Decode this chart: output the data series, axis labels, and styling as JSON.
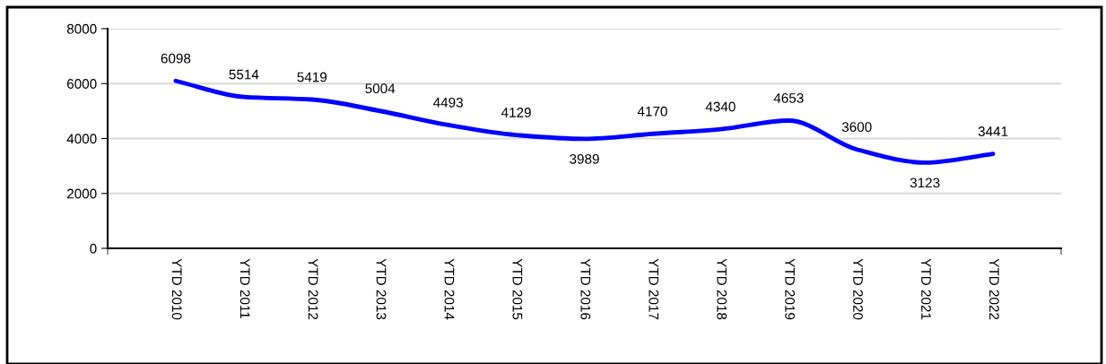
{
  "chart_data": {
    "type": "line",
    "categories": [
      "YTD 2010",
      "YTD 2011",
      "YTD 2012",
      "YTD 2013",
      "YTD 2014",
      "YTD 2015",
      "YTD 2016",
      "YTD 2017",
      "YTD 2018",
      "YTD 2019",
      "YTD 2020",
      "YTD 2021",
      "YTD 2022"
    ],
    "series": [
      {
        "color": "#0000ff",
        "values": [
          6098,
          5514,
          5419,
          5004,
          4493,
          4129,
          3989,
          4170,
          4340,
          4653,
          3600,
          3123,
          3441
        ]
      }
    ],
    "ylim": [
      0,
      8000
    ],
    "yticks": [
      0,
      2000,
      4000,
      6000,
      8000
    ],
    "grid": "y",
    "data_labels": true,
    "marker": "none",
    "line_style": "solid",
    "legend": false
  }
}
